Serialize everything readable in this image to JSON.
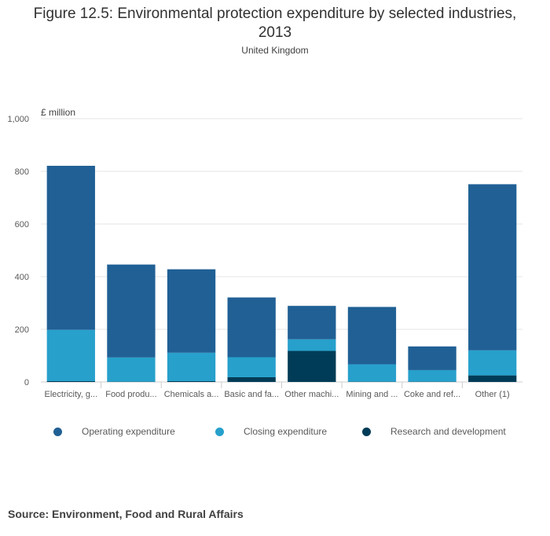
{
  "chart_data": {
    "type": "bar",
    "stacked": true,
    "title": "Figure 12.5: Environmental protection expenditure by selected industries, 2013",
    "subtitle": "United Kingdom",
    "ylabel": "£ million",
    "xlabel": "",
    "ylim": [
      0,
      1000
    ],
    "yticks": [
      0,
      200,
      400,
      600,
      800,
      1000
    ],
    "ytick_labels": [
      "0",
      "200",
      "400",
      "600",
      "800",
      "1,000"
    ],
    "categories": [
      "Electricity, g...",
      "Food produ...",
      "Chemicals a...",
      "Basic and fa...",
      "Other machi...",
      "Mining and ...",
      "Coke and ref...",
      "Other (1)"
    ],
    "series": [
      {
        "name": "Research and development",
        "color": "#003c57",
        "values": [
          3,
          1,
          3,
          18,
          118,
          1,
          1,
          25
        ]
      },
      {
        "name": "Closing expenditure",
        "color": "#27a0cc",
        "values": [
          195,
          92,
          108,
          76,
          44,
          66,
          44,
          95
        ]
      },
      {
        "name": "Operating expenditure",
        "color": "#206095",
        "values": [
          623,
          353,
          317,
          227,
          127,
          218,
          90,
          631
        ]
      }
    ],
    "legend_order": [
      "Operating expenditure",
      "Closing expenditure",
      "Research and development"
    ],
    "grid": true,
    "legend_position": "bottom"
  },
  "source": "Source: Environment, Food and Rural Affairs"
}
